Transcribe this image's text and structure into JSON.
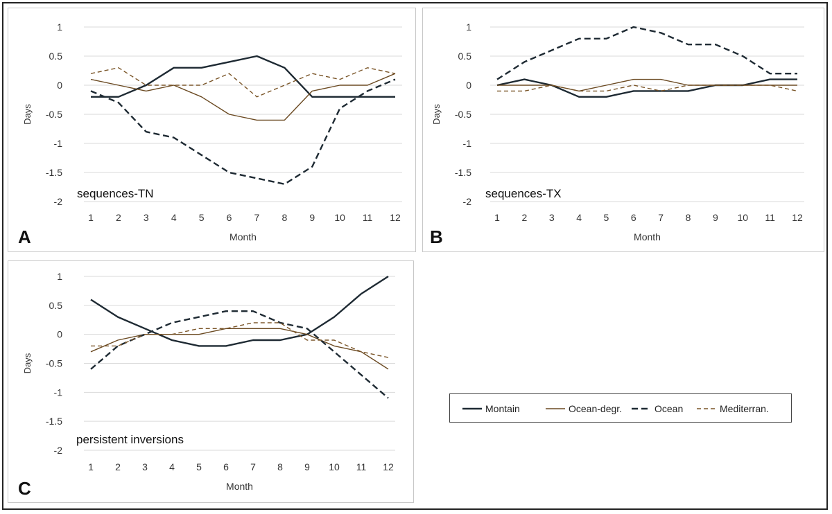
{
  "legend": [
    {
      "name": "Montain",
      "color": "#1e2a33",
      "style": "solid",
      "width": 2.4
    },
    {
      "name": "Ocean-degr.",
      "color": "#6b4a22",
      "style": "solid",
      "width": 1.4
    },
    {
      "name": "Ocean",
      "color": "#1e2a33",
      "style": "dashed",
      "width": 2.4
    },
    {
      "name": "Mediterran.",
      "color": "#7a5528",
      "style": "dashed-thin",
      "width": 1.4
    }
  ],
  "chart_data": [
    {
      "type": "line",
      "panel": "A",
      "title": "sequences-TN",
      "xlabel": "Month",
      "ylabel": "Days",
      "ylim": [
        -2,
        1
      ],
      "yticks": [
        "1",
        "0.5",
        "0",
        "-0.5",
        "-1",
        "-1.5",
        "-2"
      ],
      "x": [
        "1",
        "2",
        "3",
        "4",
        "5",
        "6",
        "7",
        "8",
        "9",
        "10",
        "11",
        "12"
      ],
      "series": [
        {
          "name": "Montain",
          "values": [
            -0.2,
            -0.2,
            0.0,
            0.3,
            0.3,
            0.4,
            0.5,
            0.3,
            -0.2,
            -0.2,
            -0.2,
            -0.2
          ]
        },
        {
          "name": "Ocean-degr.",
          "values": [
            0.1,
            0.0,
            -0.1,
            0.0,
            -0.2,
            -0.5,
            -0.6,
            -0.6,
            -0.1,
            0.0,
            0.0,
            0.2
          ]
        },
        {
          "name": "Ocean",
          "values": [
            -0.1,
            -0.3,
            -0.8,
            -0.9,
            -1.2,
            -1.5,
            -1.6,
            -1.7,
            -1.4,
            -0.4,
            -0.1,
            0.1
          ]
        },
        {
          "name": "Mediterran.",
          "values": [
            0.2,
            0.3,
            0.0,
            0.0,
            0.0,
            0.2,
            -0.2,
            0.0,
            0.2,
            0.1,
            0.3,
            0.2
          ]
        }
      ]
    },
    {
      "type": "line",
      "panel": "B",
      "title": "sequences-TX",
      "xlabel": "Month",
      "ylabel": "Days",
      "ylim": [
        -2,
        1
      ],
      "yticks": [
        "1",
        "0.5",
        "0",
        "-0.5",
        "-1",
        "-1.5",
        "-2"
      ],
      "x": [
        "1",
        "2",
        "3",
        "4",
        "5",
        "6",
        "7",
        "8",
        "9",
        "10",
        "11",
        "12"
      ],
      "series": [
        {
          "name": "Montain",
          "values": [
            0.0,
            0.1,
            0.0,
            -0.2,
            -0.2,
            -0.1,
            -0.1,
            -0.1,
            0.0,
            0.0,
            0.1,
            0.1
          ]
        },
        {
          "name": "Ocean-degr.",
          "values": [
            0.0,
            0.0,
            0.0,
            -0.1,
            0.0,
            0.1,
            0.1,
            0.0,
            0.0,
            0.0,
            0.0,
            0.0
          ]
        },
        {
          "name": "Ocean",
          "values": [
            0.1,
            0.4,
            0.6,
            0.8,
            0.8,
            1.0,
            0.9,
            0.7,
            0.7,
            0.5,
            0.2,
            0.2
          ]
        },
        {
          "name": "Mediterran.",
          "values": [
            -0.1,
            -0.1,
            0.0,
            -0.1,
            -0.1,
            0.0,
            -0.1,
            0.0,
            0.0,
            0.0,
            0.0,
            -0.1
          ]
        }
      ]
    },
    {
      "type": "line",
      "panel": "C",
      "title": "persistent inversions",
      "xlabel": "Month",
      "ylabel": "Days",
      "ylim": [
        -2,
        1
      ],
      "yticks": [
        "1",
        "0.5",
        "0",
        "-0.5",
        "-1",
        "-1.5",
        "-2"
      ],
      "x": [
        "1",
        "2",
        "3",
        "4",
        "5",
        "6",
        "7",
        "8",
        "9",
        "10",
        "11",
        "12"
      ],
      "series": [
        {
          "name": "Montain",
          "values": [
            0.6,
            0.3,
            0.1,
            -0.1,
            -0.2,
            -0.2,
            -0.1,
            -0.1,
            0.0,
            0.3,
            0.7,
            1.0
          ]
        },
        {
          "name": "Ocean-degr.",
          "values": [
            -0.3,
            -0.1,
            0.0,
            0.0,
            0.0,
            0.1,
            0.1,
            0.1,
            0.0,
            -0.2,
            -0.3,
            -0.6
          ]
        },
        {
          "name": "Ocean",
          "values": [
            -0.6,
            -0.2,
            0.0,
            0.2,
            0.3,
            0.4,
            0.4,
            0.2,
            0.1,
            -0.3,
            -0.7,
            -1.1
          ]
        },
        {
          "name": "Mediterran.",
          "values": [
            -0.2,
            -0.2,
            0.0,
            0.0,
            0.1,
            0.1,
            0.2,
            0.2,
            -0.1,
            -0.1,
            -0.3,
            -0.4
          ]
        }
      ]
    }
  ]
}
